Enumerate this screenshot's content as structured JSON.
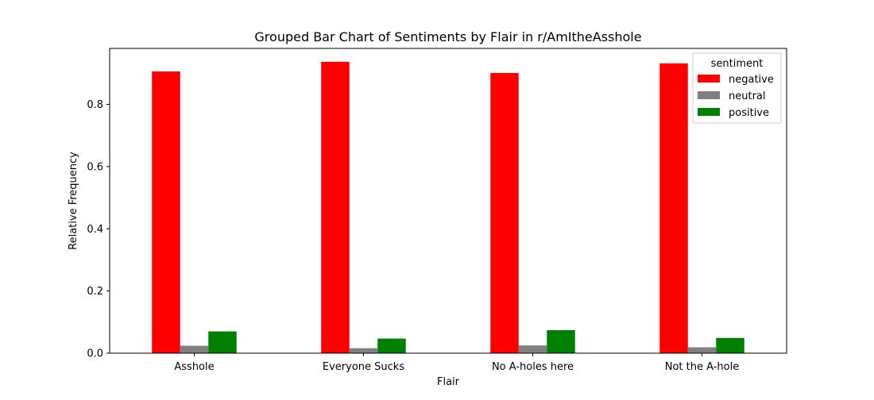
{
  "chart_data": {
    "type": "bar",
    "title": "Grouped Bar Chart of Sentiments by Flair in r/AmItheAsshole",
    "xlabel": "Flair",
    "ylabel": "Relative Frequency",
    "categories": [
      "Asshole",
      "Everyone Sucks",
      "No A-holes here",
      "Not the A-hole"
    ],
    "ylim": [
      0,
      0.98
    ],
    "yticks": [
      0.0,
      0.2,
      0.4,
      0.6,
      0.8
    ],
    "ytick_labels": [
      "0.0",
      "0.2",
      "0.4",
      "0.6",
      "0.8"
    ],
    "grid": false,
    "legend": {
      "title": "sentiment",
      "placement": "top-right"
    },
    "series": [
      {
        "name": "negative",
        "color": "#ff0000",
        "values": [
          0.906,
          0.937,
          0.901,
          0.932
        ]
      },
      {
        "name": "neutral",
        "color": "#808080",
        "values": [
          0.024,
          0.016,
          0.025,
          0.019
        ]
      },
      {
        "name": "positive",
        "color": "#008000",
        "values": [
          0.07,
          0.047,
          0.074,
          0.049
        ]
      }
    ]
  }
}
